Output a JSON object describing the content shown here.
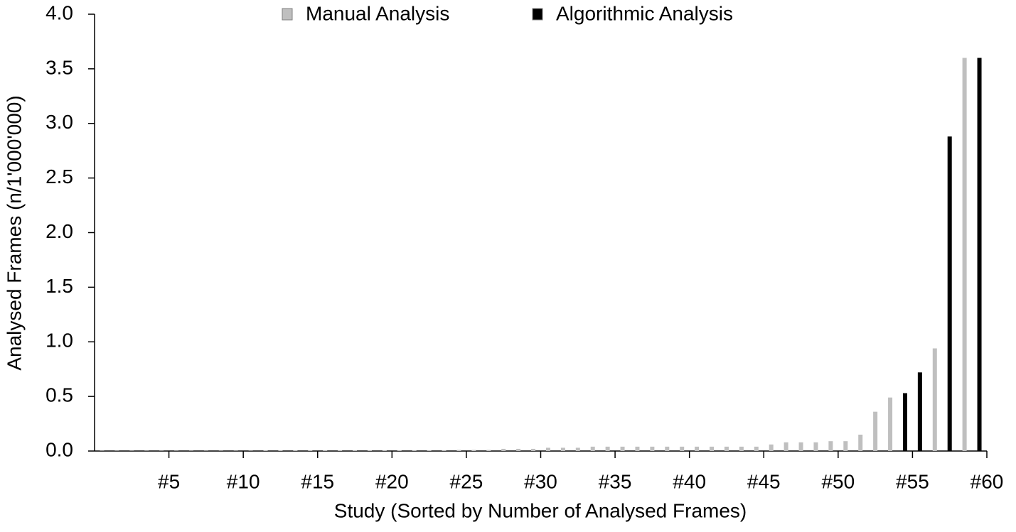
{
  "chart_data": {
    "type": "bar",
    "x_label": "Study (Sorted by Number of Analysed Frames)",
    "y_label": "Analysed Frames (n/1'000'000)",
    "categories": [
      null,
      null,
      null,
      null,
      "#5",
      null,
      null,
      null,
      null,
      "#10",
      null,
      null,
      null,
      null,
      "#15",
      null,
      null,
      null,
      null,
      "#20",
      null,
      null,
      null,
      null,
      "#25",
      null,
      null,
      null,
      null,
      "#30",
      null,
      null,
      null,
      null,
      "#35",
      null,
      null,
      null,
      null,
      "#40",
      null,
      null,
      null,
      null,
      "#45",
      null,
      null,
      null,
      null,
      "#50",
      null,
      null,
      null,
      null,
      "#55",
      null,
      null,
      null,
      null,
      "#60"
    ],
    "series": [
      {
        "name": "Manual Analysis",
        "color": "#bfbfbf",
        "values": [
          0.002,
          0.002,
          0.002,
          0.002,
          0.002,
          0.002,
          0.002,
          0.002,
          0.002,
          0.002,
          0.002,
          0.005,
          0.005,
          0.005,
          0.005,
          0.005,
          0.005,
          0.005,
          0.005,
          0.005,
          0.005,
          0.005,
          0.005,
          0.005,
          0.01,
          0.01,
          0.01,
          0.02,
          0.02,
          0.02,
          0.03,
          0.03,
          0.03,
          0.04,
          0.04,
          0.04,
          0.04,
          0.04,
          0.04,
          0.04,
          0.04,
          0.04,
          0.04,
          0.04,
          0.04,
          0.06,
          0.08,
          0.08,
          0.08,
          0.09,
          0.09,
          0.15,
          0.36,
          0.49,
          null,
          null,
          0.94,
          null,
          3.6,
          null
        ]
      },
      {
        "name": "Algorithmic Analysis",
        "color": "#000000",
        "values": [
          null,
          null,
          null,
          null,
          null,
          null,
          null,
          null,
          null,
          null,
          null,
          null,
          null,
          null,
          null,
          null,
          null,
          null,
          null,
          null,
          null,
          null,
          null,
          null,
          null,
          null,
          null,
          null,
          null,
          null,
          null,
          null,
          null,
          null,
          null,
          null,
          null,
          null,
          null,
          null,
          null,
          null,
          null,
          null,
          null,
          null,
          null,
          null,
          null,
          null,
          null,
          null,
          null,
          null,
          0.53,
          0.72,
          null,
          2.88,
          null,
          3.6
        ]
      }
    ],
    "ylim": [
      0,
      4
    ],
    "yticks": [
      {
        "value": 0,
        "label": "0.0"
      },
      0.5,
      {
        "value": 1,
        "label": "1.0"
      },
      1.5,
      {
        "value": 2,
        "label": "2.0"
      },
      2.5,
      {
        "value": 3,
        "label": "3.0"
      },
      3.5,
      {
        "value": 4,
        "label": "4.0"
      }
    ],
    "grid": false,
    "legend": "top"
  }
}
